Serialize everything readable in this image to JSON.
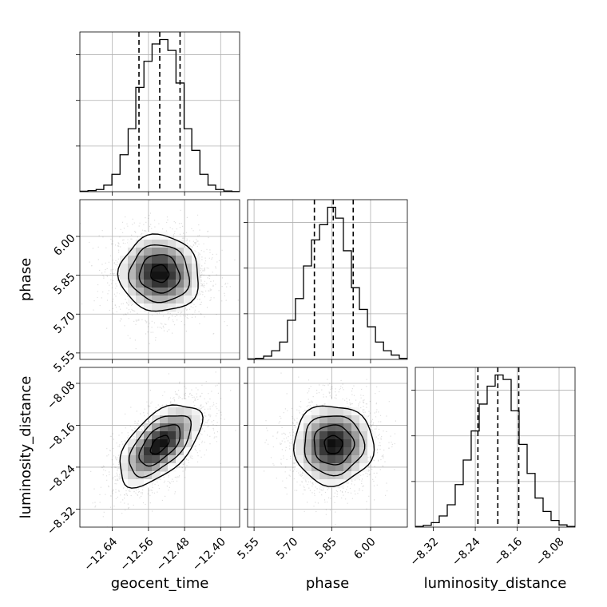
{
  "chart_data": {
    "type": "corner",
    "parameters": [
      "geocent_time",
      "phase",
      "luminosity_distance"
    ],
    "axis_labels": {
      "x": [
        "geocent_time",
        "phase",
        "luminosity_distance"
      ],
      "y_rows": [
        "",
        "phase",
        "luminosity_distance"
      ]
    },
    "ticks": {
      "geocent_time": {
        "values": [
          -12.64,
          -12.56,
          -12.48,
          -12.4
        ],
        "labels": [
          "−12.64",
          "−12.56",
          "−12.48",
          "−12.40"
        ]
      },
      "phase": {
        "values": [
          5.55,
          5.7,
          5.85,
          6.0
        ],
        "labels": [
          "5.55",
          "5.70",
          "5.85",
          "6.00"
        ]
      },
      "luminosity_distance": {
        "values": [
          -8.32,
          -8.24,
          -8.16,
          -8.08
        ],
        "labels": [
          "−8.32",
          "−8.24",
          "−8.16",
          "−8.08"
        ]
      }
    },
    "ranges": {
      "geocent_time": [
        -12.712,
        -12.358
      ],
      "phase": [
        5.525,
        6.142
      ],
      "luminosity_distance": [
        -8.3545,
        -8.0495
      ]
    },
    "quantiles": {
      "geocent_time": [
        -12.581,
        -12.535,
        -12.49
      ],
      "phase": [
        5.783,
        5.856,
        5.933
      ],
      "luminosity_distance": [
        -8.235,
        -8.197,
        -8.157
      ]
    },
    "histograms": {
      "geocent_time": {
        "bin_edges": [
          -12.712,
          -12.694,
          -12.676,
          -12.659,
          -12.641,
          -12.623,
          -12.605,
          -12.588,
          -12.57,
          -12.552,
          -12.535,
          -12.517,
          -12.499,
          -12.481,
          -12.464,
          -12.446,
          -12.428,
          -12.411,
          -12.393,
          -12.375,
          -12.358
        ],
        "counts": [
          0.2,
          0.5,
          1,
          3,
          8,
          17,
          29,
          48,
          60,
          68,
          70,
          65,
          50,
          29,
          19,
          8,
          3,
          1,
          0.3,
          0.1
        ]
      },
      "phase": {
        "bin_edges": [
          5.525,
          5.556,
          5.587,
          5.618,
          5.649,
          5.679,
          5.71,
          5.741,
          5.772,
          5.803,
          5.834,
          5.865,
          5.895,
          5.926,
          5.957,
          5.988,
          6.019,
          6.05,
          6.08,
          6.111,
          6.142
        ],
        "counts": [
          0.2,
          0.5,
          1.5,
          4,
          8,
          18,
          28,
          43,
          55,
          62,
          70,
          65,
          50,
          33,
          23,
          15,
          8,
          4,
          2,
          0.5
        ]
      },
      "luminosity_distance": {
        "bin_edges": [
          -8.3545,
          -8.3392,
          -8.324,
          -8.3088,
          -8.2935,
          -8.2783,
          -8.263,
          -8.2478,
          -8.2325,
          -8.2173,
          -8.202,
          -8.1868,
          -8.1715,
          -8.1563,
          -8.141,
          -8.1258,
          -8.1105,
          -8.0953,
          -8.08,
          -8.0648,
          -8.0495
        ],
        "counts": [
          0.3,
          0.8,
          2,
          5,
          10,
          19,
          30,
          43,
          55,
          63,
          68,
          66,
          52,
          37,
          24,
          13,
          7,
          3,
          1,
          0.3
        ]
      }
    },
    "correlations": {
      "phase|geocent_time": -0.05,
      "luminosity_distance|geocent_time": 0.62,
      "luminosity_distance|phase": 0.05
    },
    "contour_levels": [
      0.118,
      0.393,
      0.675,
      0.865
    ],
    "grid": true
  }
}
